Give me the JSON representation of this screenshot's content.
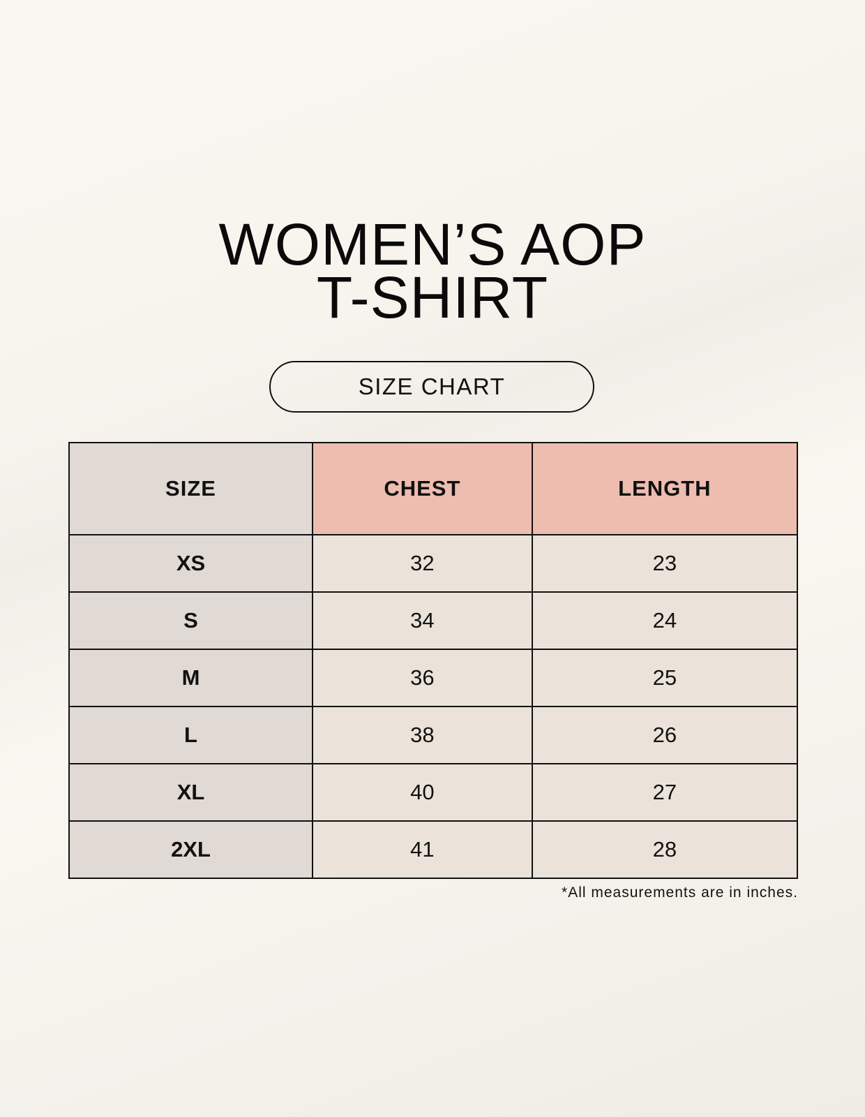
{
  "title": {
    "line1": "WOMEN’S AOP",
    "line2": "T-SHIRT"
  },
  "subtitle": "SIZE CHART",
  "table": {
    "headers": [
      "SIZE",
      "CHEST",
      "LENGTH"
    ],
    "rows": [
      [
        "XS",
        "32",
        "23"
      ],
      [
        "S",
        "34",
        "24"
      ],
      [
        "M",
        "36",
        "25"
      ],
      [
        "L",
        "38",
        "26"
      ],
      [
        "XL",
        "40",
        "27"
      ],
      [
        "2XL",
        "41",
        "28"
      ]
    ]
  },
  "footnote": "*All measurements are in inches.",
  "colors": {
    "size_column": "#e1d9d4",
    "header_accent": "#edbdb0",
    "value_cells": "#ebe3d9"
  }
}
